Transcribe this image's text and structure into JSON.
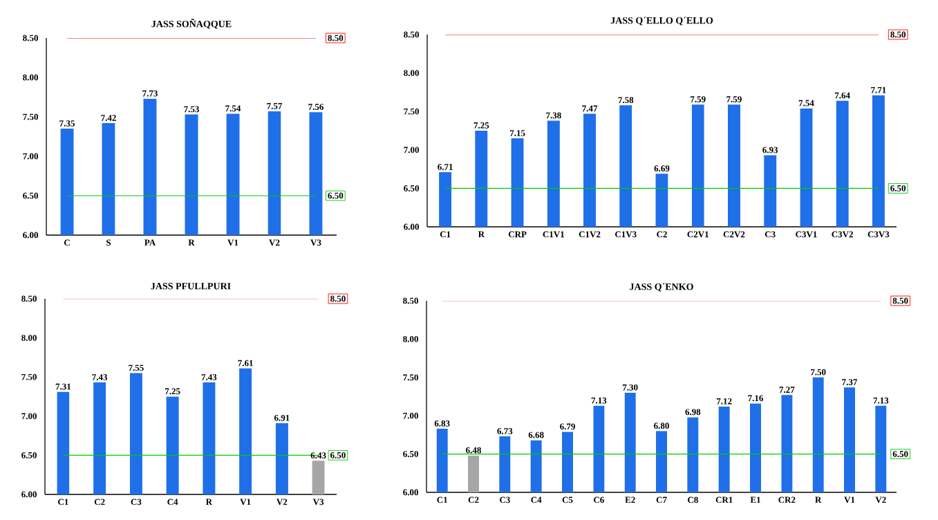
{
  "chart_data": [
    {
      "type": "bar",
      "title": "JASS SOÑAQQUE",
      "categories": [
        "C",
        "S",
        "PA",
        "R",
        "V1",
        "V2",
        "V3"
      ],
      "values": [
        7.35,
        7.42,
        7.73,
        7.53,
        7.54,
        7.57,
        7.56
      ],
      "colors": [
        "#1f6fe8",
        "#1f6fe8",
        "#1f6fe8",
        "#1f6fe8",
        "#1f6fe8",
        "#1f6fe8",
        "#1f6fe8"
      ],
      "value_labels": [
        "7.35",
        "7.42",
        "7.73",
        "7.53",
        "7.54",
        "7.57",
        "7.56"
      ],
      "ylim": [
        6,
        8.5
      ],
      "yticks": [
        {
          "value": 6,
          "label": "6.00"
        },
        {
          "value": 6.5,
          "label": "6.50"
        },
        {
          "value": 7,
          "label": "7.00"
        },
        {
          "value": 7.5,
          "label": "7.50"
        },
        {
          "value": 8,
          "label": "8.00"
        },
        {
          "value": 8.5,
          "label": "8.50"
        }
      ],
      "ref_lines": [
        {
          "axis": "y",
          "value": 8.5,
          "label": "8.50",
          "color": "#ff0000"
        },
        {
          "axis": "y",
          "value": 6.5,
          "label": "6.50",
          "color": "#00cc00"
        }
      ]
    },
    {
      "type": "bar",
      "title": "JASS Q´ELLO Q´ELLO",
      "categories": [
        "C1",
        "R",
        "CRP",
        "C1V1",
        "C1V2",
        "C1V3",
        "C2",
        "C2V1",
        "C2V2",
        "C3",
        "C3V1",
        "C3V2",
        "C3V3"
      ],
      "values": [
        6.71,
        7.25,
        7.15,
        7.38,
        7.47,
        7.58,
        6.69,
        7.59,
        7.59,
        6.93,
        7.54,
        7.64,
        7.71
      ],
      "colors": [
        "#1f6fe8",
        "#1f6fe8",
        "#1f6fe8",
        "#1f6fe8",
        "#1f6fe8",
        "#1f6fe8",
        "#1f6fe8",
        "#1f6fe8",
        "#1f6fe8",
        "#1f6fe8",
        "#1f6fe8",
        "#1f6fe8",
        "#1f6fe8"
      ],
      "value_labels": [
        "6.71",
        "7.25",
        "7.15",
        "7.38",
        "7.47",
        "7.58",
        "6.69",
        "7.59",
        "7.59",
        "6.93",
        "7.54",
        "7.64",
        "7.71"
      ],
      "ylim": [
        6,
        8.5
      ],
      "yticks": [
        {
          "value": 6,
          "label": "6.00"
        },
        {
          "value": 6.5,
          "label": "6.50"
        },
        {
          "value": 7,
          "label": "7.00"
        },
        {
          "value": 7.5,
          "label": "7.50"
        },
        {
          "value": 8,
          "label": "8.00"
        },
        {
          "value": 8.5,
          "label": "8.50"
        }
      ],
      "ref_lines": [
        {
          "axis": "y",
          "value": 8.5,
          "label": "8.50",
          "color": "#ff0000"
        },
        {
          "axis": "y",
          "value": 6.5,
          "label": "6.50",
          "color": "#00cc00"
        }
      ]
    },
    {
      "type": "bar",
      "title": "JASS PFULLPURI",
      "categories": [
        "C1",
        "C2",
        "C3",
        "C4",
        "R",
        "V1",
        "V2",
        "V3"
      ],
      "values": [
        7.31,
        7.43,
        7.55,
        7.25,
        7.43,
        7.61,
        6.91,
        6.43
      ],
      "colors": [
        "#1f6fe8",
        "#1f6fe8",
        "#1f6fe8",
        "#1f6fe8",
        "#1f6fe8",
        "#1f6fe8",
        "#1f6fe8",
        "#a6a6a6"
      ],
      "value_labels": [
        "7.31",
        "7.43",
        "7.55",
        "7.25",
        "7.43",
        "7.61",
        "6.91",
        "6.43"
      ],
      "ylim": [
        6,
        8.5
      ],
      "yticks": [
        {
          "value": 6,
          "label": "6.00"
        },
        {
          "value": 6.5,
          "label": "6.50"
        },
        {
          "value": 7,
          "label": "7.00"
        },
        {
          "value": 7.5,
          "label": "7.50"
        },
        {
          "value": 8,
          "label": "8.00"
        },
        {
          "value": 8.5,
          "label": "8.50"
        }
      ],
      "ref_lines": [
        {
          "axis": "y",
          "value": 8.5,
          "label": "8.50",
          "color": "#ff0000"
        },
        {
          "axis": "y",
          "value": 6.5,
          "label": "6.50",
          "color": "#00cc00"
        }
      ]
    },
    {
      "type": "bar",
      "title": "JASS Q´ENKO",
      "categories": [
        "C1",
        "C2",
        "C3",
        "C4",
        "C5",
        "C6",
        "E2",
        "C7",
        "C8",
        "CR1",
        "E1",
        "CR2",
        "R",
        "V1",
        "V2"
      ],
      "values": [
        6.83,
        6.48,
        6.73,
        6.68,
        6.79,
        7.13,
        7.3,
        6.8,
        6.98,
        7.12,
        7.16,
        7.27,
        7.5,
        7.37,
        7.13
      ],
      "colors": [
        "#1f6fe8",
        "#a6a6a6",
        "#1f6fe8",
        "#1f6fe8",
        "#1f6fe8",
        "#1f6fe8",
        "#1f6fe8",
        "#1f6fe8",
        "#1f6fe8",
        "#1f6fe8",
        "#1f6fe8",
        "#1f6fe8",
        "#1f6fe8",
        "#1f6fe8",
        "#1f6fe8"
      ],
      "value_labels": [
        "6.83",
        "6.48",
        "6.73",
        "6.68",
        "6.79",
        "7.13",
        "7.30",
        "6.80",
        "6.98",
        "7.12",
        "7.16",
        "7.27",
        "7.50",
        "7.37",
        "7.13"
      ],
      "ylim": [
        6,
        8.5
      ],
      "yticks": [
        {
          "value": 6,
          "label": "6.00"
        },
        {
          "value": 6.5,
          "label": "6.50"
        },
        {
          "value": 7,
          "label": "7.00"
        },
        {
          "value": 7.5,
          "label": "7.50"
        },
        {
          "value": 8,
          "label": "8.00"
        },
        {
          "value": 8.5,
          "label": "8.50"
        }
      ],
      "ref_lines": [
        {
          "axis": "y",
          "value": 8.5,
          "label": "8.50",
          "color": "#ff0000"
        },
        {
          "axis": "y",
          "value": 6.5,
          "label": "6.50",
          "color": "#00cc00"
        }
      ]
    }
  ]
}
